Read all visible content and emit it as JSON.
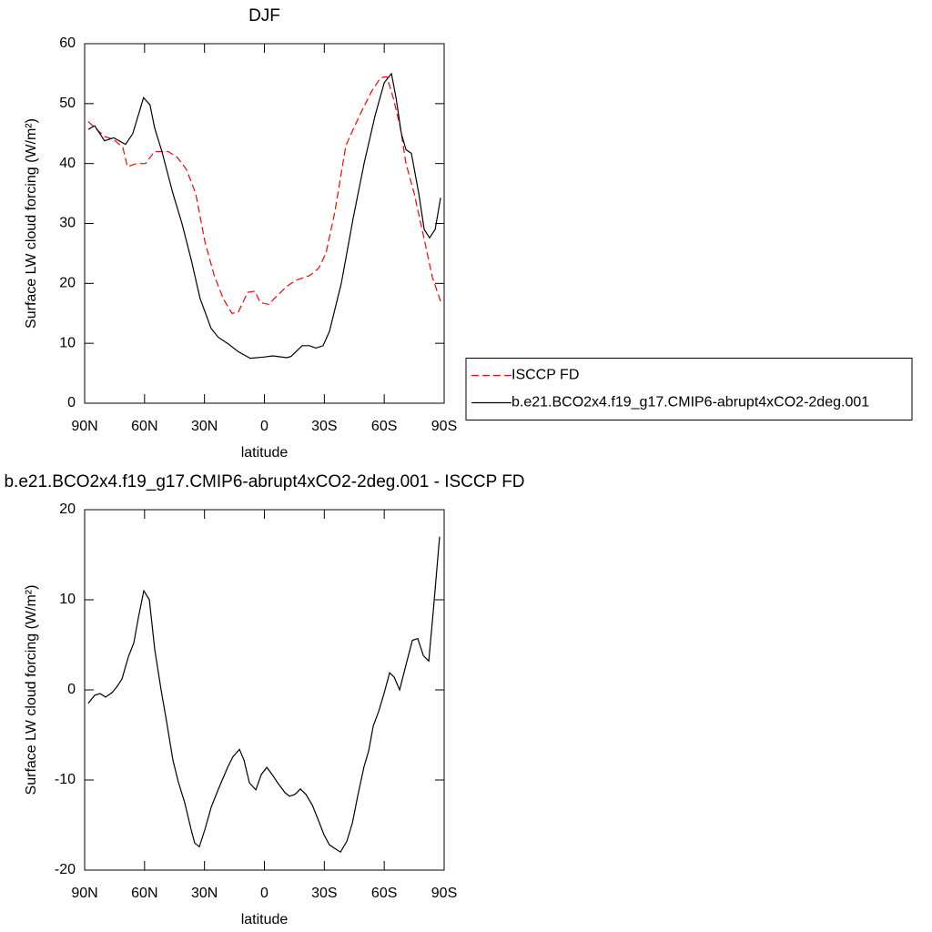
{
  "chart_data": [
    {
      "type": "line",
      "title": "DJF",
      "xlabel": "latitude",
      "ylabel": "Surface LW cloud forcing (W/m²)",
      "xlim": [
        90,
        -90
      ],
      "ylim": [
        0,
        60
      ],
      "xticks": [
        {
          "value": 90,
          "label": "90N"
        },
        {
          "value": 60,
          "label": "60N"
        },
        {
          "value": 30,
          "label": "30N"
        },
        0,
        {
          "value": -30,
          "label": "30S"
        },
        {
          "value": -60,
          "label": "60S"
        },
        {
          "value": -90,
          "label": "90S"
        }
      ],
      "yticks": [
        0,
        10,
        20,
        30,
        40,
        50,
        60
      ],
      "legend": "right",
      "series": [
        {
          "name": "ISCCP FD",
          "color": "#ff0000",
          "dash": "dashed",
          "x": [
            88.2,
            85,
            80,
            75.4,
            70.9,
            68.6,
            64,
            59.5,
            55,
            48.1,
            43.5,
            39,
            34.4,
            29.8,
            25.3,
            20.7,
            16.2,
            13.1,
            8.4,
            4.8,
            2.1,
            -2,
            -6.6,
            -11.2,
            -15.7,
            -22.6,
            -27.1,
            -30.8,
            -35.3,
            -40.8,
            -47.6,
            -53.6,
            -58.1,
            -61.3,
            -64.5,
            -68.1,
            -70.9,
            -75,
            -79.6,
            -84.1,
            -88.2
          ],
          "values": [
            47,
            46,
            44.5,
            44,
            42.7,
            39.5,
            40,
            40,
            42,
            42,
            41,
            39,
            35,
            27,
            21.5,
            17.5,
            15,
            15.2,
            18.5,
            18.7,
            16.8,
            16.5,
            18,
            19.5,
            20.5,
            21.3,
            22.5,
            25,
            32,
            43,
            48,
            52,
            54.3,
            54.5,
            51,
            46,
            40,
            35,
            28,
            21,
            17
          ]
        },
        {
          "name": "b.e21.BCO2x4.f19_g17.CMIP6-abrupt4xCO2-2deg.001",
          "color": "#000000",
          "dash": "solid",
          "x": [
            88.2,
            85,
            80,
            75.4,
            69.5,
            65.9,
            60.5,
            57.3,
            55,
            51.3,
            45.8,
            41.3,
            36.7,
            32.2,
            26.7,
            23.1,
            18.5,
            13.1,
            7.1,
            0.3,
            -4.2,
            -11.2,
            -13.4,
            -18.9,
            -22.6,
            -25.8,
            -29.4,
            -32.6,
            -38.5,
            -44.5,
            -49.9,
            -55.4,
            -60,
            -63.6,
            -65.9,
            -68.6,
            -70.9,
            -73.6,
            -77.3,
            -80,
            -82.7,
            -85.5,
            -88.2
          ],
          "values": [
            45.7,
            46.3,
            43.8,
            44.3,
            43.2,
            45,
            51,
            49.8,
            46,
            42,
            35,
            30,
            24,
            17.5,
            12.5,
            11,
            10,
            8.6,
            7.5,
            7.7,
            7.9,
            7.6,
            7.8,
            9.6,
            9.6,
            9.2,
            9.6,
            12,
            20,
            31,
            40,
            48,
            53.5,
            55,
            51,
            45,
            42.3,
            41.7,
            35,
            29,
            27.6,
            29,
            34.3
          ]
        }
      ]
    },
    {
      "type": "line",
      "title": "b.e21.BCO2x4.f19_g17.CMIP6-abrupt4xCO2-2deg.001 - ISCCP FD",
      "xlabel": "latitude",
      "ylabel": "Surface LW cloud forcing (W/m²)",
      "xlim": [
        90,
        -90
      ],
      "ylim": [
        -20,
        20
      ],
      "xticks": [
        {
          "value": 90,
          "label": "90N"
        },
        {
          "value": 60,
          "label": "60N"
        },
        {
          "value": 30,
          "label": "30N"
        },
        0,
        {
          "value": -30,
          "label": "30S"
        },
        {
          "value": -60,
          "label": "60S"
        },
        {
          "value": -90,
          "label": "90S"
        }
      ],
      "yticks": [
        -20,
        -10,
        0,
        10,
        20
      ],
      "series": [
        {
          "color": "#000000",
          "dash": "solid",
          "x": [
            88.2,
            85,
            82.3,
            79.5,
            76.3,
            74,
            71.3,
            68.1,
            65.4,
            63.1,
            60.4,
            57.6,
            54.9,
            51.7,
            49,
            45.8,
            43.1,
            39.9,
            36.7,
            34.9,
            32.6,
            29.8,
            26.6,
            23,
            18.4,
            15.7,
            12.5,
            10.2,
            7.5,
            4.3,
            1.6,
            -1.2,
            -3.9,
            -6.6,
            -10.3,
            -12.6,
            -15.3,
            -18,
            -20.8,
            -24,
            -26.2,
            -29.9,
            -32.6,
            -35.3,
            -38.1,
            -41.3,
            -44,
            -46.7,
            -49.9,
            -52.2,
            -54.5,
            -57.2,
            -60,
            -62.7,
            -65,
            -67.7,
            -70.9,
            -74.1,
            -76.8,
            -79.6,
            -82.3,
            -84.6,
            -87.7
          ],
          "values": [
            -1.5,
            -0.6,
            -0.4,
            -0.8,
            -0.3,
            0.3,
            1.2,
            3.7,
            5.2,
            8,
            11,
            10,
            4.5,
            0,
            -3.5,
            -7.8,
            -10.2,
            -12.5,
            -15.5,
            -17,
            -17.4,
            -15.5,
            -13,
            -11,
            -8.6,
            -7.4,
            -6.6,
            -7.8,
            -10.3,
            -11.1,
            -9.4,
            -8.6,
            -9.4,
            -10.3,
            -11.4,
            -11.8,
            -11.6,
            -11,
            -11.6,
            -12.8,
            -14,
            -16.1,
            -17.2,
            -17.6,
            -18,
            -16.8,
            -14.8,
            -11.8,
            -8.5,
            -6.8,
            -4,
            -2.4,
            -0.3,
            1.9,
            1.4,
            0,
            2.8,
            5.5,
            5.7,
            3.8,
            3.2,
            8.8,
            17
          ]
        }
      ]
    }
  ]
}
